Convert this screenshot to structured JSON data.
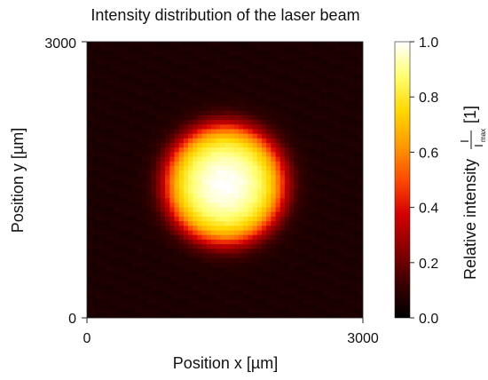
{
  "chart_data": {
    "type": "heatmap",
    "title": "Intensity distribution of the laser beam",
    "xlabel": "Position x [µm]",
    "ylabel": "Position y [µm]",
    "xlim": [
      0,
      3000
    ],
    "ylim": [
      0,
      3000
    ],
    "x_ticks": [
      "0",
      "3000"
    ],
    "y_ticks": [
      "0",
      "3000"
    ],
    "colormap": "hot",
    "colormap_stops": [
      "#000000",
      "#3a0000",
      "#8b0000",
      "#d40000",
      "#ff4a00",
      "#ff9a00",
      "#ffd800",
      "#ffff70",
      "#ffffff"
    ],
    "grid": false,
    "grid_cells": 60,
    "background_level": 0.06,
    "beam": {
      "center_x": 1500,
      "center_y": 1450,
      "radius": 680,
      "edge_softness": 70,
      "peak_level": 1.0,
      "edge_level": 0.58
    },
    "colorbar": {
      "label_prefix": "Relative intensity",
      "label_fraction_num": "I",
      "label_fraction_den": "I",
      "label_fraction_den_sub": "max",
      "label_unit": "[1]",
      "range": [
        0.0,
        1.0
      ],
      "ticks": [
        "0.0",
        "0.2",
        "0.4",
        "0.6",
        "0.8",
        "1.0"
      ]
    }
  }
}
